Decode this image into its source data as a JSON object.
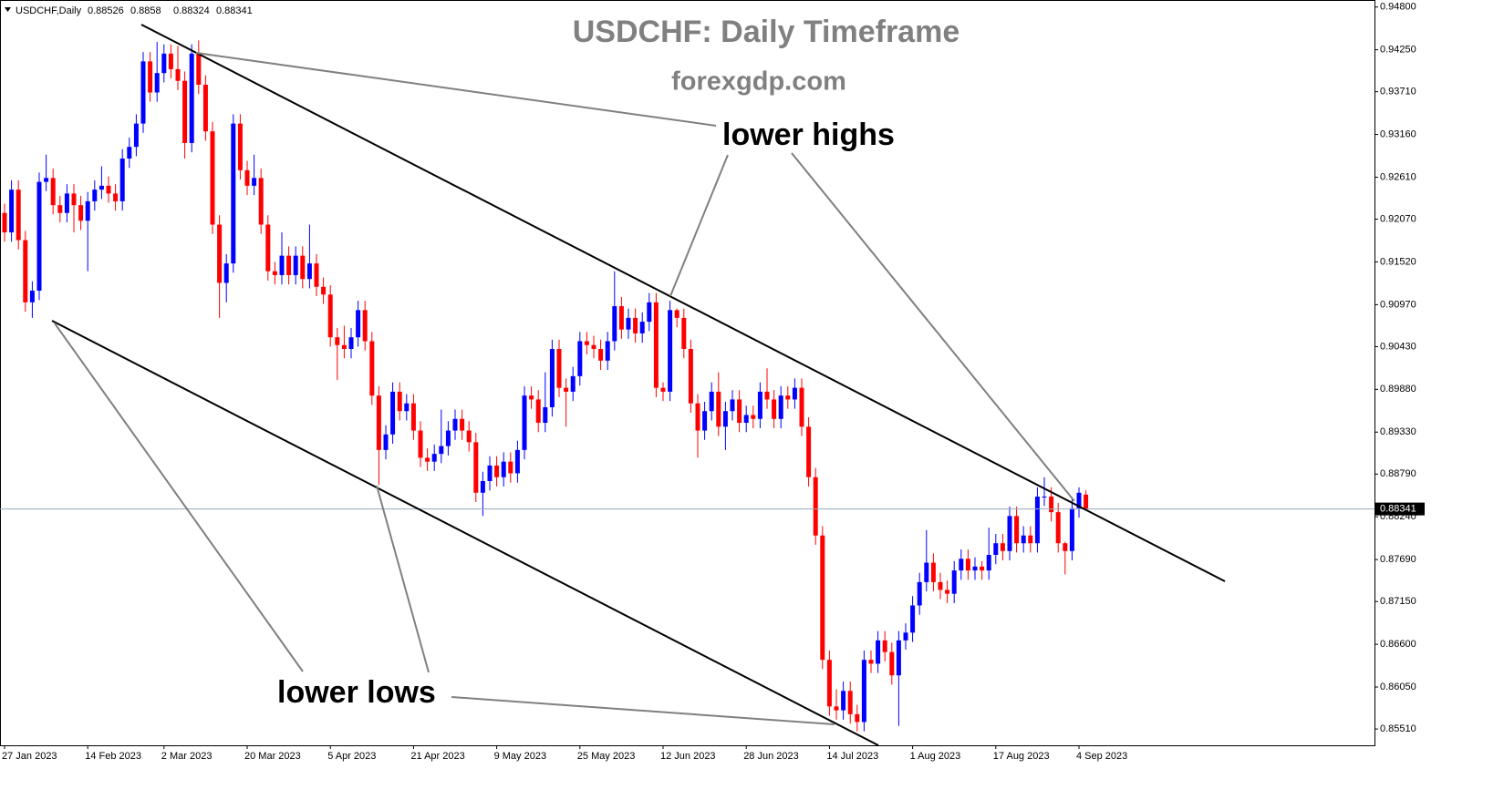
{
  "chart_data": {
    "type": "candlestick",
    "title": "USDCHF: Daily Timeframe",
    "subtitle": "forexgdp.com",
    "symbol": "USDCHF,Daily",
    "annotations": [
      "lower highs",
      "lower lows"
    ],
    "up_color": "#0000ff",
    "down_color": "#ff0000",
    "categories": [
      "27 Jan 2023",
      null,
      null,
      null,
      null,
      null,
      null,
      null,
      null,
      null,
      null,
      null,
      "14 Feb 2023",
      null,
      null,
      null,
      null,
      null,
      null,
      null,
      null,
      null,
      null,
      "2 Mar 2023",
      null,
      null,
      null,
      null,
      null,
      null,
      null,
      null,
      null,
      null,
      null,
      "20 Mar 2023",
      null,
      null,
      null,
      null,
      null,
      null,
      null,
      null,
      null,
      null,
      null,
      "5 Apr 2023",
      null,
      null,
      null,
      null,
      null,
      null,
      null,
      null,
      null,
      null,
      null,
      "21 Apr 2023",
      null,
      null,
      null,
      null,
      null,
      null,
      null,
      null,
      null,
      null,
      null,
      "9 May 2023",
      null,
      null,
      null,
      null,
      null,
      null,
      null,
      null,
      null,
      null,
      null,
      "25 May 2023",
      null,
      null,
      null,
      null,
      null,
      null,
      null,
      null,
      null,
      null,
      null,
      "12 Jun 2023",
      null,
      null,
      null,
      null,
      null,
      null,
      null,
      null,
      null,
      null,
      null,
      "28 Jun 2023",
      null,
      null,
      null,
      null,
      null,
      null,
      null,
      null,
      null,
      null,
      null,
      "14 Jul 2023",
      null,
      null,
      null,
      null,
      null,
      null,
      null,
      null,
      null,
      null,
      null,
      "1 Aug 2023",
      null,
      null,
      null,
      null,
      null,
      null,
      null,
      null,
      null,
      null,
      null,
      "17 Aug 2023",
      null,
      null,
      null,
      null,
      null,
      null,
      null,
      null,
      null,
      null,
      null,
      "4 Sep 2023",
      null
    ],
    "open": [
      0.9215,
      0.919,
      0.9245,
      0.918,
      0.91,
      0.9115,
      0.9255,
      0.926,
      0.9225,
      0.9215,
      0.924,
      0.9225,
      0.9205,
      0.923,
      0.9245,
      0.925,
      0.924,
      0.923,
      0.9285,
      0.93,
      0.933,
      0.941,
      0.937,
      0.9395,
      0.942,
      0.94,
      0.9385,
      0.9305,
      0.942,
      0.938,
      0.932,
      0.92,
      0.9125,
      0.915,
      0.933,
      0.927,
      0.925,
      0.926,
      0.92,
      0.914,
      0.9135,
      0.916,
      0.9135,
      0.916,
      0.913,
      0.915,
      0.912,
      0.911,
      0.9055,
      0.9045,
      0.904,
      0.9055,
      0.909,
      0.905,
      0.898,
      0.891,
      0.893,
      0.8985,
      0.896,
      0.897,
      0.8935,
      0.89,
      0.8895,
      0.8905,
      0.8915,
      0.8935,
      0.895,
      0.8935,
      0.892,
      0.8855,
      0.887,
      0.889,
      0.8875,
      0.8895,
      0.888,
      0.891,
      0.898,
      0.8975,
      0.8945,
      0.8965,
      0.904,
      0.899,
      0.8985,
      0.9005,
      0.905,
      0.9045,
      0.904,
      0.9025,
      0.905,
      0.9095,
      0.9065,
      0.908,
      0.906,
      0.9075,
      0.91,
      0.899,
      0.8985,
      0.909,
      0.908,
      0.904,
      0.897,
      0.8935,
      0.896,
      0.8985,
      0.894,
      0.896,
      0.8975,
      0.8945,
      0.8955,
      0.895,
      0.8985,
      0.8975,
      0.895,
      0.898,
      0.8975,
      0.899,
      0.894,
      0.8875,
      0.88,
      0.864,
      0.858,
      0.8575,
      0.86,
      0.857,
      0.856,
      0.864,
      0.8635,
      0.8665,
      0.865,
      0.862,
      0.8665,
      0.8675,
      0.871,
      0.874,
      0.8765,
      0.874,
      0.873,
      0.8725,
      0.8755,
      0.877,
      0.8755,
      0.876,
      0.8755,
      0.8775,
      0.879,
      0.878,
      0.8825,
      0.879,
      0.88,
      0.879,
      0.885,
      0.885,
      0.883,
      0.879,
      0.878,
      0.8835,
      0.88526
    ],
    "high": [
      0.9227,
      0.9257,
      0.9257,
      0.9192,
      0.9127,
      0.9267,
      0.929,
      0.9272,
      0.9237,
      0.9252,
      0.9252,
      0.9237,
      0.9242,
      0.9257,
      0.9275,
      0.9262,
      0.9252,
      0.9297,
      0.9312,
      0.9342,
      0.9422,
      0.9422,
      0.9435,
      0.9432,
      0.9432,
      0.943,
      0.9397,
      0.9432,
      0.9437,
      0.9392,
      0.9332,
      0.9212,
      0.9162,
      0.9342,
      0.9342,
      0.9282,
      0.929,
      0.9272,
      0.9212,
      0.9152,
      0.919,
      0.9172,
      0.9172,
      0.9172,
      0.92,
      0.9162,
      0.9132,
      0.9122,
      0.9067,
      0.907,
      0.9067,
      0.9102,
      0.9102,
      0.9062,
      0.8992,
      0.8942,
      0.8997,
      0.8997,
      0.8982,
      0.8982,
      0.8947,
      0.8912,
      0.8917,
      0.8962,
      0.8947,
      0.8962,
      0.8962,
      0.8947,
      0.8932,
      0.8882,
      0.8902,
      0.8902,
      0.8907,
      0.8907,
      0.8922,
      0.8992,
      0.8992,
      0.8987,
      0.901,
      0.9052,
      0.9052,
      0.9002,
      0.9017,
      0.9062,
      0.9062,
      0.9057,
      0.9052,
      0.9062,
      0.914,
      0.9107,
      0.9092,
      0.9092,
      0.9087,
      0.9112,
      0.9112,
      0.8997,
      0.9102,
      0.9092,
      0.9092,
      0.9052,
      0.8982,
      0.8972,
      0.8997,
      0.901,
      0.8972,
      0.8987,
      0.8987,
      0.8967,
      0.8967,
      0.8997,
      0.9015,
      0.8987,
      0.8992,
      0.8992,
      0.9002,
      0.9002,
      0.8952,
      0.8887,
      0.8812,
      0.8652,
      0.8602,
      0.8612,
      0.8612,
      0.8582,
      0.8652,
      0.8652,
      0.8677,
      0.8677,
      0.8662,
      0.8677,
      0.8687,
      0.8722,
      0.8752,
      0.8807,
      0.8777,
      0.8752,
      0.8742,
      0.8767,
      0.8782,
      0.8782,
      0.8772,
      0.8767,
      0.881,
      0.8802,
      0.8802,
      0.8837,
      0.8837,
      0.8812,
      0.8812,
      0.8862,
      0.8875,
      0.8862,
      0.8842,
      0.8792,
      0.8847,
      0.8862,
      0.8858
    ],
    "low": [
      0.9178,
      0.9178,
      0.9168,
      0.9088,
      0.908,
      0.9103,
      0.9243,
      0.9213,
      0.9203,
      0.9203,
      0.919,
      0.9193,
      0.914,
      0.9218,
      0.9233,
      0.9228,
      0.9218,
      0.9218,
      0.9273,
      0.9288,
      0.9318,
      0.9358,
      0.9358,
      0.9383,
      0.9388,
      0.9373,
      0.9285,
      0.9293,
      0.9368,
      0.9308,
      0.9188,
      0.908,
      0.91,
      0.9138,
      0.9258,
      0.9238,
      0.9238,
      0.9188,
      0.9128,
      0.9123,
      0.9123,
      0.9123,
      0.9123,
      0.9118,
      0.9118,
      0.9108,
      0.9098,
      0.9043,
      0.9,
      0.9028,
      0.9028,
      0.9043,
      0.9038,
      0.8968,
      0.8865,
      0.8898,
      0.8918,
      0.8948,
      0.8948,
      0.8923,
      0.8888,
      0.8883,
      0.8883,
      0.8893,
      0.8903,
      0.8923,
      0.8923,
      0.8908,
      0.8843,
      0.8825,
      0.8858,
      0.8863,
      0.8863,
      0.8868,
      0.8868,
      0.8898,
      0.8963,
      0.8933,
      0.8933,
      0.8953,
      0.8978,
      0.894,
      0.8973,
      0.8993,
      0.9033,
      0.9028,
      0.9013,
      0.9013,
      0.9038,
      0.9053,
      0.9053,
      0.9048,
      0.9048,
      0.9063,
      0.8978,
      0.8973,
      0.8973,
      0.9068,
      0.9028,
      0.8958,
      0.89,
      0.8923,
      0.8948,
      0.8928,
      0.891,
      0.8948,
      0.8933,
      0.8933,
      0.8938,
      0.8938,
      0.8963,
      0.8938,
      0.8938,
      0.8963,
      0.8963,
      0.8928,
      0.8863,
      0.8788,
      0.8628,
      0.8568,
      0.8563,
      0.8563,
      0.8558,
      0.8548,
      0.8548,
      0.8623,
      0.8623,
      0.8638,
      0.8608,
      0.8555,
      0.8653,
      0.8663,
      0.8698,
      0.8728,
      0.8728,
      0.8718,
      0.8713,
      0.8713,
      0.8743,
      0.8743,
      0.8743,
      0.8743,
      0.8743,
      0.8763,
      0.8768,
      0.8768,
      0.8778,
      0.8778,
      0.8778,
      0.8778,
      0.8838,
      0.8818,
      0.8778,
      0.875,
      0.8768,
      0.8823,
      0.88324
    ],
    "close": [
      0.919,
      0.9245,
      0.918,
      0.91,
      0.9115,
      0.9255,
      0.926,
      0.9225,
      0.9215,
      0.924,
      0.9225,
      0.9205,
      0.923,
      0.9245,
      0.925,
      0.924,
      0.923,
      0.9285,
      0.93,
      0.933,
      0.941,
      0.937,
      0.9395,
      0.942,
      0.94,
      0.9385,
      0.9305,
      0.942,
      0.938,
      0.932,
      0.92,
      0.9125,
      0.915,
      0.933,
      0.927,
      0.925,
      0.926,
      0.92,
      0.914,
      0.9135,
      0.916,
      0.9135,
      0.916,
      0.913,
      0.915,
      0.912,
      0.911,
      0.9055,
      0.9045,
      0.904,
      0.9055,
      0.909,
      0.905,
      0.898,
      0.891,
      0.893,
      0.8985,
      0.896,
      0.897,
      0.8935,
      0.89,
      0.8895,
      0.8905,
      0.8915,
      0.8935,
      0.895,
      0.8935,
      0.892,
      0.8855,
      0.887,
      0.889,
      0.8875,
      0.8895,
      0.888,
      0.891,
      0.898,
      0.8975,
      0.8945,
      0.8965,
      0.904,
      0.899,
      0.8985,
      0.9005,
      0.905,
      0.9045,
      0.904,
      0.9025,
      0.905,
      0.9095,
      0.9065,
      0.908,
      0.906,
      0.9075,
      0.91,
      0.899,
      0.8985,
      0.909,
      0.908,
      0.904,
      0.897,
      0.8935,
      0.896,
      0.8985,
      0.894,
      0.896,
      0.8975,
      0.8945,
      0.8955,
      0.895,
      0.8985,
      0.8975,
      0.895,
      0.898,
      0.8975,
      0.899,
      0.894,
      0.8875,
      0.88,
      0.864,
      0.858,
      0.8575,
      0.86,
      0.857,
      0.856,
      0.864,
      0.8635,
      0.8665,
      0.865,
      0.862,
      0.8665,
      0.8675,
      0.871,
      0.874,
      0.8765,
      0.874,
      0.873,
      0.8725,
      0.8755,
      0.877,
      0.8755,
      0.876,
      0.8755,
      0.8775,
      0.879,
      0.878,
      0.8825,
      0.879,
      0.88,
      0.879,
      0.885,
      0.885,
      0.883,
      0.879,
      0.878,
      0.8835,
      0.8855,
      0.88341
    ],
    "ylim": [
      0.853,
      0.9489
    ],
    "yticks": [
      {
        "value": 0.948,
        "label": "0.94800"
      },
      {
        "value": 0.9425,
        "label": "0.94250"
      },
      {
        "value": 0.9371,
        "label": "0.93710"
      },
      {
        "value": 0.9316,
        "label": "0.93160"
      },
      {
        "value": 0.9261,
        "label": "0.92610"
      },
      {
        "value": 0.9207,
        "label": "0.92070"
      },
      {
        "value": 0.9152,
        "label": "0.91520"
      },
      {
        "value": 0.9097,
        "label": "0.90970"
      },
      {
        "value": 0.9043,
        "label": "0.90430"
      },
      {
        "value": 0.8988,
        "label": "0.89880"
      },
      {
        "value": 0.8933,
        "label": "0.89330"
      },
      {
        "value": 0.8879,
        "label": "0.88790"
      },
      {
        "value": 0.8824,
        "label": "0.88240"
      },
      {
        "value": 0.8769,
        "label": "0.87690"
      },
      {
        "value": 0.8715,
        "label": "0.87150"
      },
      {
        "value": 0.866,
        "label": "0.86600"
      },
      {
        "value": 0.8605,
        "label": "0.86050"
      },
      {
        "value": 0.8551,
        "label": "0.85510"
      }
    ],
    "grid": false
  }
}
